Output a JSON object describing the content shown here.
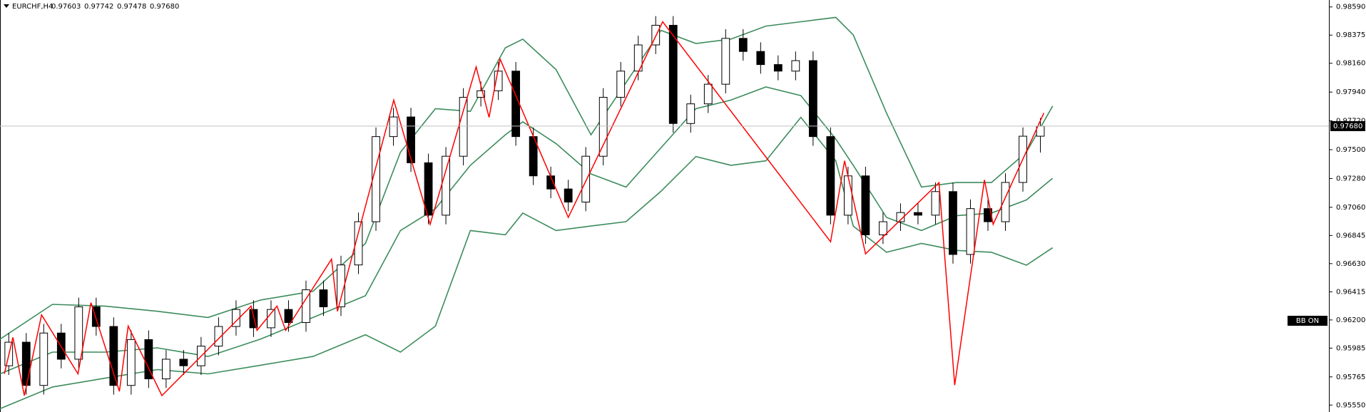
{
  "chart_data": {
    "type": "candlestick",
    "symbol": "EURCHF,H4",
    "last_labels": {
      "open": "0.97603",
      "high": "0.97742",
      "low": "0.97478",
      "close": "0.97680"
    },
    "indicator_label": "BB ON",
    "xlim": [
      -0.5,
      75.5
    ],
    "ylim": [
      0.95497,
      0.98643
    ],
    "yticks": [
      {
        "value": 0.9859,
        "label": "0.98590"
      },
      {
        "value": 0.98375,
        "label": "0.98375"
      },
      {
        "value": 0.9816,
        "label": "0.98160"
      },
      {
        "value": 0.9794,
        "label": "0.97940"
      },
      {
        "value": 0.9772,
        "label": "0.97720"
      },
      {
        "value": 0.975,
        "label": "0.97500"
      },
      {
        "value": 0.9728,
        "label": "0.97280"
      },
      {
        "value": 0.9706,
        "label": "0.97060"
      },
      {
        "value": 0.96845,
        "label": "0.96845"
      },
      {
        "value": 0.9663,
        "label": "0.96630"
      },
      {
        "value": 0.96415,
        "label": "0.96415"
      },
      {
        "value": 0.962,
        "label": "0.96200"
      },
      {
        "value": 0.95985,
        "label": "0.95985"
      },
      {
        "value": 0.95765,
        "label": "0.95765"
      },
      {
        "value": 0.9555,
        "label": "0.95550"
      }
    ],
    "bull_color": "#ffffff",
    "bear_color": "#000000",
    "wick_color": "#000000",
    "open": [
      0.9585,
      0.9603,
      0.957,
      0.961,
      0.959,
      0.963,
      0.9615,
      0.957,
      0.9605,
      0.9575,
      0.959,
      0.9585,
      0.96,
      0.9615,
      0.9628,
      0.9614,
      0.9628,
      0.9618,
      0.9643,
      0.963,
      0.9662,
      0.9695,
      0.976,
      0.9775,
      0.974,
      0.97,
      0.9745,
      0.979,
      0.9795,
      0.981,
      0.976,
      0.973,
      0.972,
      0.971,
      0.9745,
      0.979,
      0.981,
      0.983,
      0.9845,
      0.977,
      0.9785,
      0.98,
      0.9835,
      0.9825,
      0.9815,
      0.981,
      0.9818,
      0.976,
      0.97,
      0.973,
      0.9685,
      0.9695,
      0.9702,
      0.97,
      0.9718,
      0.967,
      0.9705,
      0.9695,
      0.9725,
      0.97603
    ],
    "high": [
      0.961,
      0.961,
      0.9617,
      0.9617,
      0.9637,
      0.9637,
      0.9622,
      0.9612,
      0.9612,
      0.9597,
      0.9597,
      0.9607,
      0.9622,
      0.9635,
      0.9635,
      0.9635,
      0.9635,
      0.965,
      0.965,
      0.9669,
      0.9702,
      0.9767,
      0.9782,
      0.9782,
      0.9747,
      0.9752,
      0.9797,
      0.9802,
      0.9817,
      0.9817,
      0.9767,
      0.9737,
      0.9727,
      0.9752,
      0.9797,
      0.9817,
      0.9837,
      0.9852,
      0.9852,
      0.9792,
      0.9807,
      0.9842,
      0.9842,
      0.9832,
      0.9822,
      0.9825,
      0.9825,
      0.9767,
      0.9737,
      0.9737,
      0.9702,
      0.9709,
      0.9709,
      0.9725,
      0.9725,
      0.9712,
      0.9712,
      0.9732,
      0.9767,
      0.97742
    ],
    "low": [
      0.9578,
      0.9563,
      0.9563,
      0.9583,
      0.9583,
      0.9608,
      0.9563,
      0.9563,
      0.9568,
      0.9568,
      0.9578,
      0.9578,
      0.9593,
      0.9608,
      0.9607,
      0.9607,
      0.9611,
      0.9611,
      0.9623,
      0.9623,
      0.9655,
      0.9688,
      0.9753,
      0.9733,
      0.9693,
      0.9693,
      0.9738,
      0.9783,
      0.9788,
      0.9753,
      0.9723,
      0.9713,
      0.9703,
      0.9703,
      0.9738,
      0.9783,
      0.9803,
      0.9823,
      0.9763,
      0.9763,
      0.9778,
      0.9793,
      0.9818,
      0.9808,
      0.9803,
      0.9803,
      0.9753,
      0.9693,
      0.9693,
      0.9678,
      0.9678,
      0.9688,
      0.9693,
      0.9693,
      0.9663,
      0.9663,
      0.9688,
      0.9688,
      0.9718,
      0.97478
    ],
    "close": [
      0.9603,
      0.957,
      0.961,
      0.959,
      0.963,
      0.9615,
      0.957,
      0.9605,
      0.9575,
      0.959,
      0.9585,
      0.96,
      0.9615,
      0.9628,
      0.9614,
      0.9628,
      0.9618,
      0.9643,
      0.963,
      0.9662,
      0.9695,
      0.976,
      0.9775,
      0.974,
      0.97,
      0.9745,
      0.979,
      0.9795,
      0.981,
      0.976,
      0.973,
      0.972,
      0.971,
      0.9745,
      0.979,
      0.981,
      0.983,
      0.9845,
      0.977,
      0.9785,
      0.98,
      0.9835,
      0.9825,
      0.9815,
      0.981,
      0.9818,
      0.976,
      0.97,
      0.973,
      0.9685,
      0.9695,
      0.9702,
      0.97,
      0.9718,
      0.967,
      0.9705,
      0.9695,
      0.9725,
      0.97603,
      0.9768
    ],
    "series": [
      {
        "color": "#3c8c5c",
        "x": [
          -0.5,
          2.5,
          5.5,
          8.5,
          11.4,
          14.4,
          17.4,
          20.4,
          22.4,
          24.4,
          26.4,
          28.4,
          29.4,
          31.3,
          33.3,
          35.3,
          37.3,
          39.3,
          41.3,
          43.3,
          45.3,
          47.3,
          48.3,
          50.2,
          52.2,
          54.2,
          56.2,
          58.2,
          59.7
        ],
        "values": [
          0.96053,
          0.96319,
          0.96306,
          0.96266,
          0.96219,
          0.96352,
          0.96419,
          0.96784,
          0.97481,
          0.97813,
          0.97793,
          0.98278,
          0.98344,
          0.98112,
          0.97614,
          0.98012,
          0.98411,
          0.98311,
          0.98344,
          0.98444,
          0.98477,
          0.9851,
          0.98377,
          0.9778,
          0.97215,
          0.97249,
          0.97249,
          0.97481,
          0.97833
        ]
      },
      {
        "color": "#3c8c5c",
        "x": [
          -0.5,
          2.5,
          5.5,
          8.5,
          11.4,
          14.4,
          17.4,
          20.4,
          22.4,
          24.4,
          26.4,
          28.4,
          29.4,
          31.3,
          33.3,
          35.3,
          37.3,
          39.3,
          41.3,
          43.3,
          45.3,
          47.3,
          48.3,
          50.2,
          52.2,
          54.2,
          56.2,
          58.2,
          59.7
        ],
        "values": [
          0.95788,
          0.95954,
          0.95954,
          0.95987,
          0.95921,
          0.96053,
          0.96219,
          0.96385,
          0.96883,
          0.97049,
          0.97381,
          0.97614,
          0.97713,
          0.97547,
          0.97315,
          0.97215,
          0.97514,
          0.97813,
          0.97879,
          0.97979,
          0.97913,
          0.97581,
          0.97381,
          0.96983,
          0.96883,
          0.96996,
          0.97016,
          0.97116,
          0.97282
        ]
      },
      {
        "color": "#3c8c5c",
        "x": [
          -0.5,
          2.5,
          5.5,
          8.5,
          11.4,
          14.4,
          17.4,
          20.4,
          22.4,
          24.4,
          26.4,
          28.4,
          29.4,
          31.3,
          33.3,
          35.3,
          37.3,
          39.3,
          41.3,
          43.3,
          45.3,
          47.3,
          48.3,
          50.2,
          52.2,
          54.2,
          56.2,
          58.2,
          59.7
        ],
        "values": [
          0.95522,
          0.95688,
          0.95755,
          0.95821,
          0.95788,
          0.95854,
          0.95921,
          0.96087,
          0.95954,
          0.96153,
          0.96883,
          0.9685,
          0.97016,
          0.96883,
          0.96917,
          0.9695,
          0.97182,
          0.97448,
          0.97381,
          0.97415,
          0.97747,
          0.97415,
          0.96917,
          0.96717,
          0.96784,
          0.96731,
          0.96717,
          0.96618,
          0.96751
        ]
      },
      {
        "color": "#ff0000",
        "x": [
          -0.25,
          0.24,
          0.89,
          1.88,
          3.96,
          4.7,
          6.33,
          6.83,
          8.76,
          13.86,
          14.2,
          15.34,
          15.84,
          18.46,
          18.8,
          22.02,
          24.1,
          26.73,
          27.47,
          28.1,
          32.0,
          37.4,
          47.0,
          47.8,
          49.0,
          53.2,
          54.1,
          55.8,
          56.3,
          59.2
        ],
        "values": [
          0.95788,
          0.96067,
          0.95622,
          0.96239,
          0.95788,
          0.96332,
          0.95655,
          0.96153,
          0.95622,
          0.96306,
          0.9612,
          0.96306,
          0.9612,
          0.96664,
          0.96266,
          0.97879,
          0.9693,
          0.98132,
          0.97747,
          0.98192,
          0.96983,
          0.98477,
          0.96797,
          0.97415,
          0.96704,
          0.97249,
          0.95702,
          0.97269,
          0.9693,
          0.9778
        ]
      }
    ]
  }
}
